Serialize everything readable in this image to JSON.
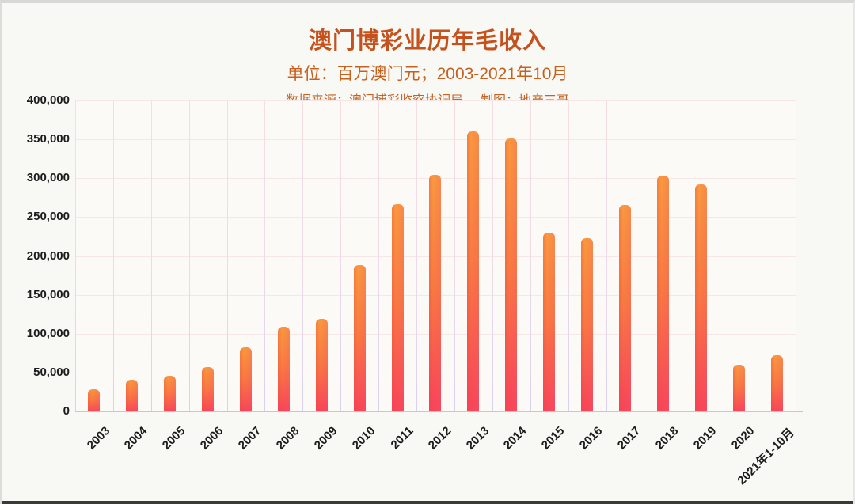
{
  "header": {
    "title": "澳门博彩业历年毛收入",
    "subtitle": "单位：百万澳门元；2003-2021年10月",
    "source": "数据来源：澳门博彩监察协调局",
    "credit": "制图：地产三哥",
    "title_color": "#c5511c",
    "subtitle_color": "#c7601f"
  },
  "chart_data": {
    "type": "bar",
    "title": "澳门博彩业历年毛收入",
    "unit_note": "单位：百万澳门元；2003-2021年10月",
    "data_source": "数据来源：澳门博彩监察协调局",
    "credit": "制图：地产三哥",
    "categories": [
      "2003",
      "2004",
      "2005",
      "2006",
      "2007",
      "2008",
      "2009",
      "2010",
      "2011",
      "2012",
      "2013",
      "2014",
      "2015",
      "2016",
      "2017",
      "2018",
      "2019",
      "2020",
      "2021年1-10月"
    ],
    "values": [
      29000,
      41000,
      46000,
      57000,
      83000,
      109000,
      119000,
      188000,
      267000,
      304000,
      360000,
      351000,
      230000,
      223000,
      266000,
      303000,
      292000,
      60000,
      72000
    ],
    "xlabel": "",
    "ylabel": "",
    "ylim": [
      0,
      400000
    ],
    "ytick_interval": 50000,
    "ytick_labels": [
      "0",
      "50,000",
      "100,000",
      "150,000",
      "200,000",
      "250,000",
      "300,000",
      "350,000",
      "400,000"
    ],
    "grid": true,
    "legend_position": "none",
    "bar_color_top": "#f9993d",
    "bar_color_mid": "#f87a40",
    "bar_color_bottom": "#f74757",
    "gridline_color_top": "#f7dee3",
    "gridline_color_bottom": "#d9d1ee",
    "x_tick_rotation_deg": -45
  }
}
